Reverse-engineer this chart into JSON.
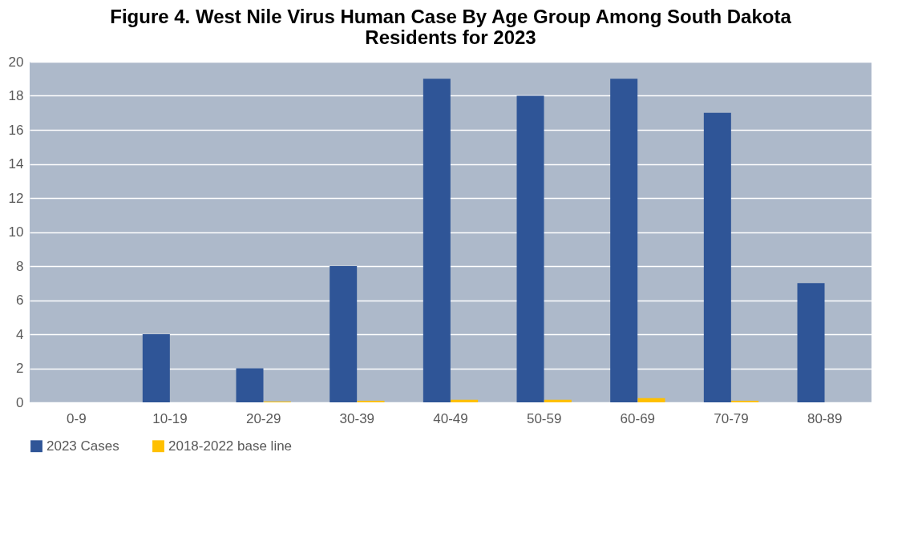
{
  "chart_data": {
    "type": "bar",
    "title": [
      "Figure 4. West Nile Virus Human Case By Age Group Among South Dakota",
      "Residents for 2023"
    ],
    "categories": [
      "0-9",
      "10-19",
      "20-29",
      "30-39",
      "40-49",
      "50-59",
      "60-69",
      "70-79",
      "80-89"
    ],
    "series": [
      {
        "name": "2023 Cases",
        "color": "#2f5597",
        "values": [
          0,
          4,
          2,
          8,
          19,
          18,
          19,
          17,
          7
        ]
      },
      {
        "name": "2018-2022 base line",
        "color": "#ffc000",
        "values": [
          0,
          0,
          0.05,
          0.1,
          0.15,
          0.15,
          0.25,
          0.1,
          0
        ]
      }
    ],
    "ylim": [
      0,
      20
    ],
    "yticks": [
      0,
      2,
      4,
      6,
      8,
      10,
      12,
      14,
      16,
      18,
      20
    ],
    "grid": "y",
    "legend": "bottom"
  }
}
